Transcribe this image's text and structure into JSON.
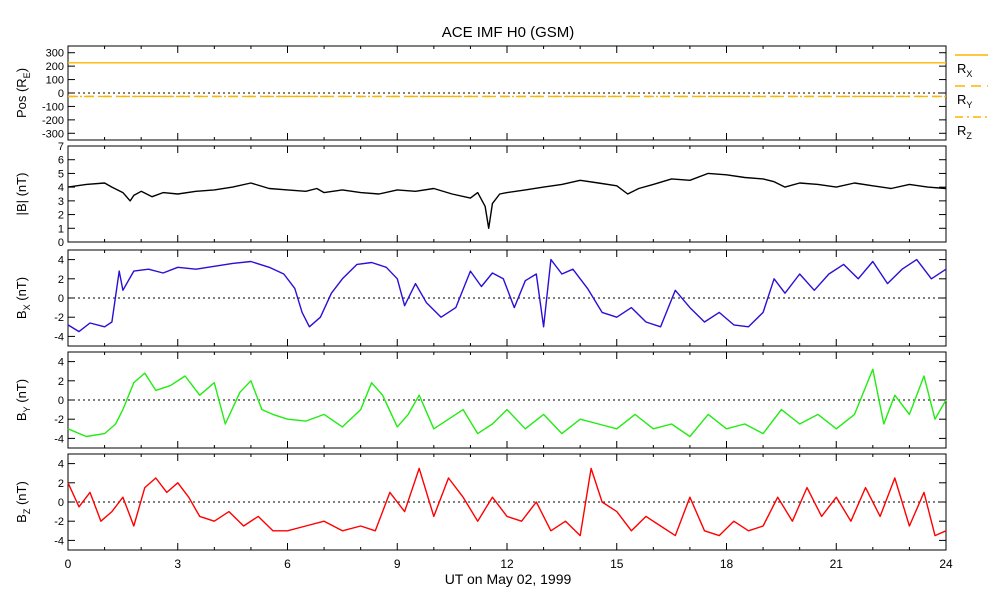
{
  "title": "ACE IMF H0 (GSM)",
  "xlabel": "UT on May 02, 1999",
  "x_ticks": [
    "0",
    "3",
    "6",
    "9",
    "12",
    "15",
    "18",
    "21",
    "24"
  ],
  "chart_data": [
    {
      "type": "line",
      "panel": "position",
      "ylabel": "Pos (R",
      "ylabel_sub": "E",
      "ylabel_tail": ")",
      "ylim": [
        -350,
        350
      ],
      "yticks": [
        300,
        200,
        100,
        0,
        -100,
        -200,
        -300
      ],
      "zero_line": true,
      "series": [
        {
          "name": "R",
          "sub": "X",
          "color": "#ffb400",
          "dash": "solid",
          "x": [
            0,
            24
          ],
          "values": [
            225,
            225
          ]
        },
        {
          "name": "R",
          "sub": "Y",
          "color": "#ffb400",
          "dash": "long",
          "x": [
            0,
            24
          ],
          "values": [
            -25,
            -25
          ]
        },
        {
          "name": "R",
          "sub": "Z",
          "color": "#ffb400",
          "dash": "dashdot",
          "x": [
            0,
            24
          ],
          "values": [
            -25,
            -25
          ]
        }
      ]
    },
    {
      "type": "line",
      "panel": "btotal",
      "ylabel": "|B| (nT)",
      "ylim": [
        0,
        7
      ],
      "yticks": [
        7,
        6,
        5,
        4,
        3,
        2,
        1,
        0
      ],
      "zero_line": false,
      "series": [
        {
          "name": "",
          "color": "#000000",
          "x": [
            0,
            0.5,
            1.0,
            1.2,
            1.5,
            1.7,
            1.8,
            2.0,
            2.3,
            2.6,
            3.0,
            3.5,
            4.0,
            4.5,
            5.0,
            5.5,
            6.0,
            6.5,
            6.8,
            7.0,
            7.5,
            8.0,
            8.5,
            9.0,
            9.5,
            10.0,
            10.5,
            11.0,
            11.2,
            11.4,
            11.5,
            11.6,
            11.8,
            12.0,
            12.5,
            13.0,
            13.5,
            14.0,
            14.5,
            15.0,
            15.3,
            15.6,
            16.0,
            16.5,
            17.0,
            17.5,
            18.0,
            18.5,
            19.0,
            19.3,
            19.6,
            20.0,
            20.5,
            21.0,
            21.5,
            22.0,
            22.5,
            23.0,
            23.5,
            24.0
          ],
          "values": [
            4.0,
            4.2,
            4.3,
            4.0,
            3.6,
            3.0,
            3.4,
            3.7,
            3.3,
            3.6,
            3.5,
            3.7,
            3.8,
            4.0,
            4.3,
            3.9,
            3.8,
            3.7,
            3.9,
            3.6,
            3.8,
            3.6,
            3.5,
            3.8,
            3.7,
            3.9,
            3.5,
            3.2,
            3.6,
            2.6,
            1.0,
            2.8,
            3.5,
            3.6,
            3.8,
            4.0,
            4.2,
            4.5,
            4.3,
            4.1,
            3.5,
            3.9,
            4.2,
            4.6,
            4.5,
            5.0,
            4.9,
            4.7,
            4.6,
            4.4,
            4.0,
            4.3,
            4.2,
            4.0,
            4.3,
            4.1,
            3.9,
            4.2,
            4.0,
            3.9
          ]
        }
      ]
    },
    {
      "type": "line",
      "panel": "bx",
      "ylabel": "B",
      "ylabel_sub": "X",
      "ylabel_tail": " (nT)",
      "ylim": [
        -5,
        5
      ],
      "yticks": [
        4,
        2,
        0,
        -2,
        -4
      ],
      "zero_line": true,
      "series": [
        {
          "name": "",
          "color": "#2a0fd6",
          "x": [
            0,
            0.3,
            0.6,
            1.0,
            1.2,
            1.4,
            1.5,
            1.8,
            2.2,
            2.6,
            3.0,
            3.5,
            4.0,
            4.5,
            5.0,
            5.5,
            5.9,
            6.2,
            6.4,
            6.6,
            6.9,
            7.2,
            7.5,
            7.9,
            8.3,
            8.7,
            9.0,
            9.2,
            9.5,
            9.8,
            10.2,
            10.6,
            11.0,
            11.3,
            11.6,
            11.9,
            12.2,
            12.5,
            12.8,
            13.0,
            13.2,
            13.5,
            13.8,
            14.2,
            14.6,
            15.0,
            15.4,
            15.8,
            16.2,
            16.6,
            17.0,
            17.4,
            17.8,
            18.2,
            18.6,
            19.0,
            19.3,
            19.6,
            20.0,
            20.4,
            20.8,
            21.2,
            21.6,
            22.0,
            22.4,
            22.8,
            23.2,
            23.6,
            24.0
          ],
          "values": [
            -2.8,
            -3.5,
            -2.6,
            -3.0,
            -2.5,
            2.8,
            0.8,
            2.8,
            3.0,
            2.6,
            3.2,
            3.0,
            3.3,
            3.6,
            3.8,
            3.2,
            2.5,
            1.0,
            -1.5,
            -3.0,
            -2.0,
            0.5,
            2.0,
            3.5,
            3.7,
            3.2,
            2.0,
            -0.8,
            1.5,
            -0.5,
            -2.0,
            -1.0,
            2.8,
            1.2,
            2.6,
            2.0,
            -1.0,
            1.8,
            2.5,
            -3.0,
            4.0,
            2.5,
            3.0,
            1.0,
            -1.5,
            -2.0,
            -1.0,
            -2.5,
            -3.0,
            0.8,
            -1.0,
            -2.5,
            -1.5,
            -2.8,
            -3.0,
            -1.5,
            2.0,
            0.5,
            2.5,
            0.8,
            2.5,
            3.5,
            2.0,
            3.8,
            1.5,
            3.0,
            4.0,
            2.0,
            3.0
          ]
        }
      ]
    },
    {
      "type": "line",
      "panel": "by",
      "ylabel": "B",
      "ylabel_sub": "Y",
      "ylabel_tail": " (nT)",
      "ylim": [
        -5,
        5
      ],
      "yticks": [
        4,
        2,
        0,
        -2,
        -4
      ],
      "zero_line": true,
      "series": [
        {
          "name": "",
          "color": "#22ec12",
          "x": [
            0,
            0.5,
            1.0,
            1.3,
            1.5,
            1.8,
            2.1,
            2.4,
            2.8,
            3.2,
            3.6,
            4.0,
            4.3,
            4.7,
            5.0,
            5.3,
            5.6,
            6.0,
            6.5,
            7.0,
            7.5,
            8.0,
            8.3,
            8.6,
            9.0,
            9.3,
            9.6,
            10.0,
            10.4,
            10.8,
            11.2,
            11.6,
            12.0,
            12.5,
            13.0,
            13.5,
            14.0,
            14.5,
            15.0,
            15.5,
            16.0,
            16.5,
            17.0,
            17.5,
            18.0,
            18.5,
            19.0,
            19.5,
            20.0,
            20.5,
            21.0,
            21.5,
            22.0,
            22.3,
            22.6,
            23.0,
            23.4,
            23.7,
            24.0
          ],
          "values": [
            -3.0,
            -3.8,
            -3.5,
            -2.5,
            -1.0,
            1.8,
            2.8,
            1.0,
            1.5,
            2.5,
            0.5,
            1.8,
            -2.5,
            0.8,
            2.0,
            -1.0,
            -1.5,
            -2.0,
            -2.2,
            -1.5,
            -2.8,
            -1.0,
            1.8,
            0.5,
            -2.8,
            -1.5,
            0.5,
            -3.0,
            -2.0,
            -1.0,
            -3.5,
            -2.5,
            -1.0,
            -3.0,
            -1.5,
            -3.5,
            -2.0,
            -2.5,
            -3.0,
            -1.5,
            -3.0,
            -2.5,
            -3.8,
            -1.5,
            -3.0,
            -2.5,
            -3.5,
            -1.0,
            -2.5,
            -1.5,
            -3.0,
            -1.5,
            3.2,
            -2.5,
            0.5,
            -1.5,
            2.5,
            -2.0,
            0.0
          ]
        }
      ]
    },
    {
      "type": "line",
      "panel": "bz",
      "ylabel": "B",
      "ylabel_sub": "Z",
      "ylabel_tail": " (nT)",
      "ylim": [
        -5,
        5
      ],
      "yticks": [
        4,
        2,
        0,
        -2,
        -4
      ],
      "zero_line": true,
      "series": [
        {
          "name": "",
          "color": "#ff0000",
          "x": [
            0,
            0.3,
            0.6,
            0.9,
            1.2,
            1.5,
            1.8,
            2.1,
            2.4,
            2.7,
            3.0,
            3.3,
            3.6,
            4.0,
            4.4,
            4.8,
            5.2,
            5.6,
            6.0,
            6.5,
            7.0,
            7.5,
            8.0,
            8.4,
            8.8,
            9.2,
            9.6,
            10.0,
            10.4,
            10.8,
            11.2,
            11.6,
            12.0,
            12.4,
            12.8,
            13.2,
            13.6,
            14.0,
            14.3,
            14.6,
            15.0,
            15.4,
            15.8,
            16.2,
            16.6,
            17.0,
            17.4,
            17.8,
            18.2,
            18.6,
            19.0,
            19.4,
            19.8,
            20.2,
            20.6,
            21.0,
            21.4,
            21.8,
            22.2,
            22.6,
            23.0,
            23.4,
            23.7,
            24.0
          ],
          "values": [
            2.0,
            -0.5,
            1.0,
            -2.0,
            -1.0,
            0.5,
            -2.5,
            1.5,
            2.5,
            1.0,
            2.0,
            0.5,
            -1.5,
            -2.0,
            -1.0,
            -2.5,
            -1.5,
            -3.0,
            -3.0,
            -2.5,
            -2.0,
            -3.0,
            -2.5,
            -3.0,
            1.0,
            -1.0,
            3.5,
            -1.5,
            2.5,
            0.5,
            -2.0,
            0.5,
            -1.5,
            -2.0,
            0.0,
            -3.0,
            -2.0,
            -3.5,
            3.5,
            0.0,
            -1.0,
            -3.0,
            -1.5,
            -2.5,
            -3.5,
            0.5,
            -3.0,
            -3.5,
            -2.0,
            -3.0,
            -2.5,
            0.5,
            -2.0,
            1.5,
            -1.5,
            0.5,
            -2.0,
            1.5,
            -1.5,
            2.5,
            -2.5,
            1.0,
            -3.5,
            -3.0
          ]
        }
      ]
    }
  ]
}
